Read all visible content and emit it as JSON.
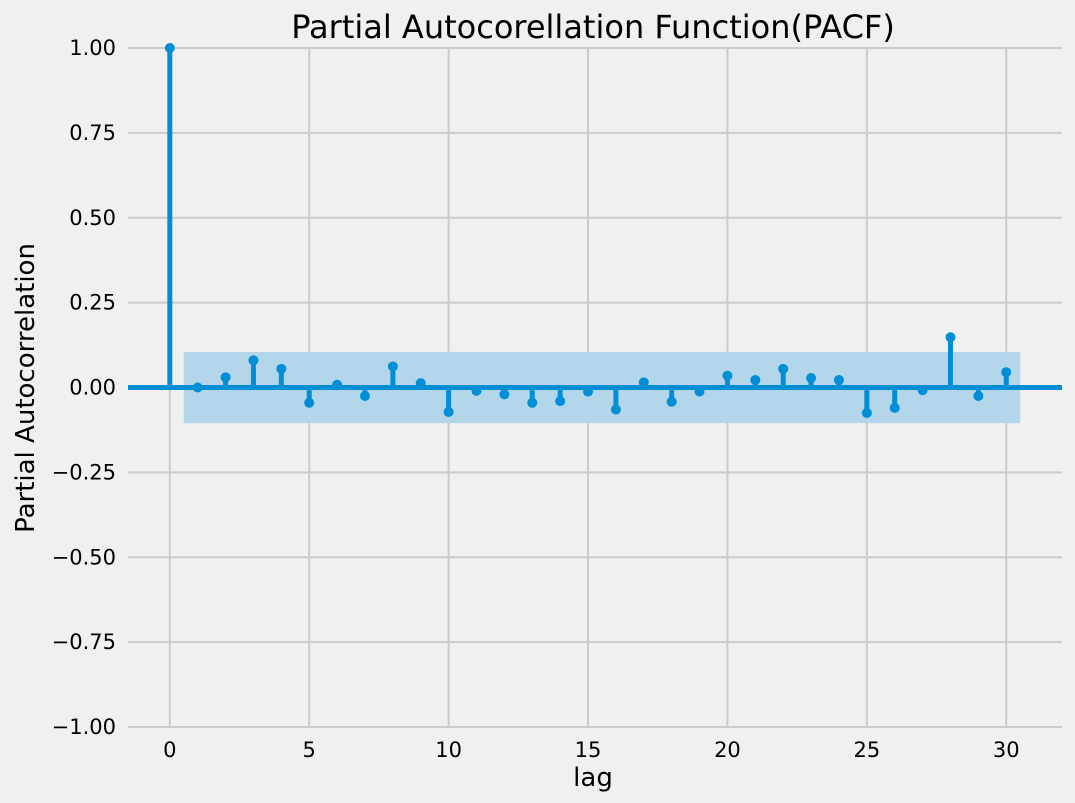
{
  "chart_data": {
    "type": "stem",
    "title": "Partial Autocorellation Function(PACF)",
    "xlabel": "lag",
    "ylabel": "Partial Autocorrelation",
    "xlim": [
      -1.5,
      32
    ],
    "ylim": [
      -1.0,
      1.0
    ],
    "x_ticks": [
      0,
      5,
      10,
      15,
      20,
      25,
      30
    ],
    "y_ticks": [
      -1.0,
      -0.75,
      -0.5,
      -0.25,
      0.0,
      0.25,
      0.5,
      0.75,
      1.0
    ],
    "y_tick_labels": [
      "−1.00",
      "−0.75",
      "−0.50",
      "−0.25",
      "0.00",
      "0.25",
      "0.50",
      "0.75",
      "1.00"
    ],
    "x_tick_labels": [
      "0",
      "5",
      "10",
      "15",
      "20",
      "25",
      "30"
    ],
    "grid": true,
    "series": [
      {
        "lags": [
          0,
          1,
          2,
          3,
          4,
          5,
          6,
          7,
          8,
          9,
          10,
          11,
          12,
          13,
          14,
          15,
          16,
          17,
          18,
          19,
          20,
          21,
          22,
          23,
          24,
          25,
          26,
          27,
          28,
          29,
          30
        ],
        "values": [
          1.0,
          0.0,
          0.03,
          0.08,
          0.055,
          -0.045,
          0.008,
          -0.025,
          0.062,
          0.013,
          -0.072,
          -0.01,
          -0.02,
          -0.045,
          -0.04,
          -0.012,
          -0.065,
          0.015,
          -0.042,
          -0.012,
          0.035,
          0.022,
          0.055,
          0.028,
          0.022,
          -0.075,
          -0.06,
          -0.008,
          0.148,
          -0.025,
          0.045
        ]
      }
    ],
    "confidence_band": {
      "lag_range": [
        0.5,
        30.5
      ],
      "lower": -0.105,
      "upper": 0.105
    },
    "colors": {
      "stem": "#008fd5",
      "band": "#b3d6ea",
      "zero_line": "#008fd5",
      "grid": "#cbcbcb",
      "background": "#f0f0f0"
    }
  }
}
